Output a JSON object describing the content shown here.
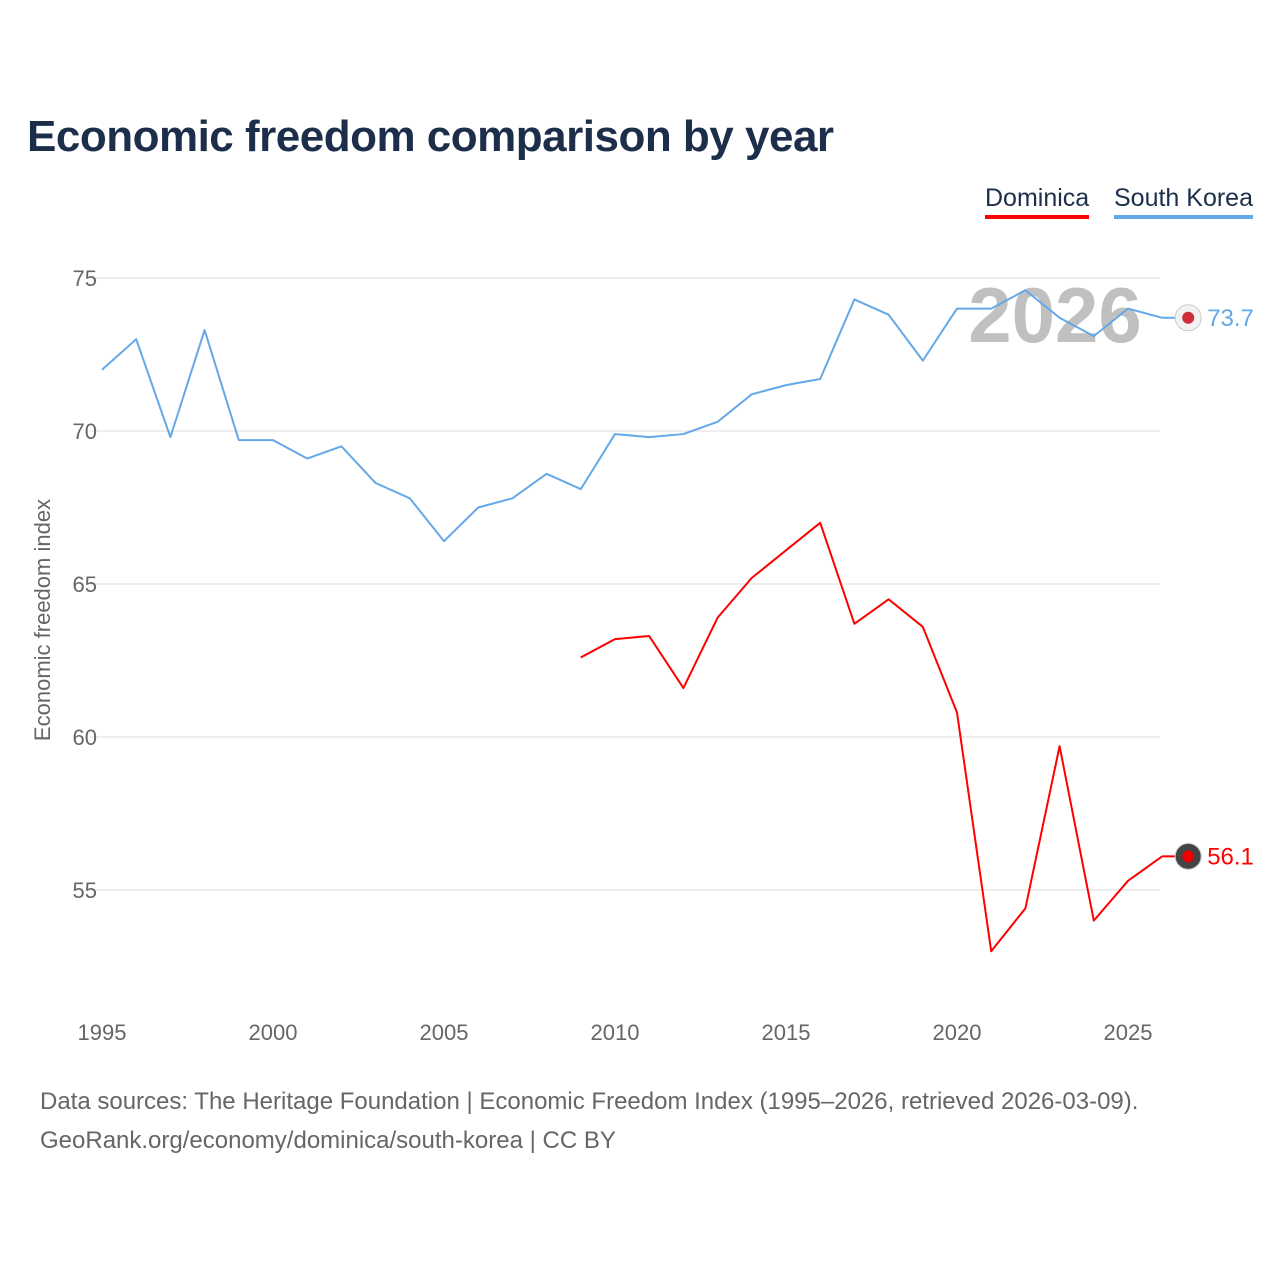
{
  "title": "Economic freedom comparison by year",
  "legend": [
    {
      "label": "Dominica",
      "color": "#ff0000"
    },
    {
      "label": "South Korea",
      "color": "#64a8e8"
    }
  ],
  "footer": {
    "line1": "Data sources: The Heritage Foundation | Economic Freedom Index (1995–2026, retrieved 2026-03-09).",
    "line2": "GeoRank.org/economy/dominica/south-korea | CC BY"
  },
  "chart_data": {
    "type": "line",
    "title": "Economic freedom comparison by year",
    "xlabel": "",
    "ylabel": "Economic freedom index",
    "current_year_label": "2026",
    "xlim": [
      1995,
      2026
    ],
    "ylim": [
      51.5,
      76
    ],
    "x_ticks": [
      1995,
      2000,
      2005,
      2010,
      2015,
      2020,
      2025
    ],
    "y_ticks": [
      55,
      60,
      65,
      70,
      75
    ],
    "grid": true,
    "legend_position": "top-right",
    "series": [
      {
        "name": "South Korea",
        "color": "#64a8e8",
        "end_label": "73.7",
        "x": [
          1995,
          1996,
          1997,
          1998,
          1999,
          2000,
          2001,
          2002,
          2003,
          2004,
          2005,
          2006,
          2007,
          2008,
          2009,
          2010,
          2011,
          2012,
          2013,
          2014,
          2015,
          2016,
          2017,
          2018,
          2019,
          2020,
          2021,
          2022,
          2023,
          2024,
          2025,
          2026
        ],
        "values": [
          72.0,
          73.0,
          69.8,
          73.3,
          69.7,
          69.7,
          69.1,
          69.5,
          68.3,
          67.8,
          66.4,
          67.5,
          67.8,
          68.6,
          68.1,
          69.9,
          69.8,
          69.9,
          70.3,
          71.2,
          71.5,
          71.7,
          74.3,
          73.8,
          72.3,
          74.0,
          74.0,
          74.6,
          73.7,
          73.1,
          74.0,
          73.7
        ]
      },
      {
        "name": "Dominica",
        "color": "#ff0000",
        "end_label": "56.1",
        "x": [
          2009,
          2010,
          2011,
          2012,
          2013,
          2014,
          2015,
          2016,
          2017,
          2018,
          2019,
          2020,
          2021,
          2022,
          2023,
          2024,
          2025,
          2026
        ],
        "values": [
          62.6,
          63.2,
          63.3,
          61.6,
          63.9,
          65.2,
          66.1,
          67.0,
          63.7,
          64.5,
          63.6,
          60.8,
          53.0,
          54.4,
          59.7,
          54.0,
          55.3,
          56.1
        ]
      }
    ]
  }
}
